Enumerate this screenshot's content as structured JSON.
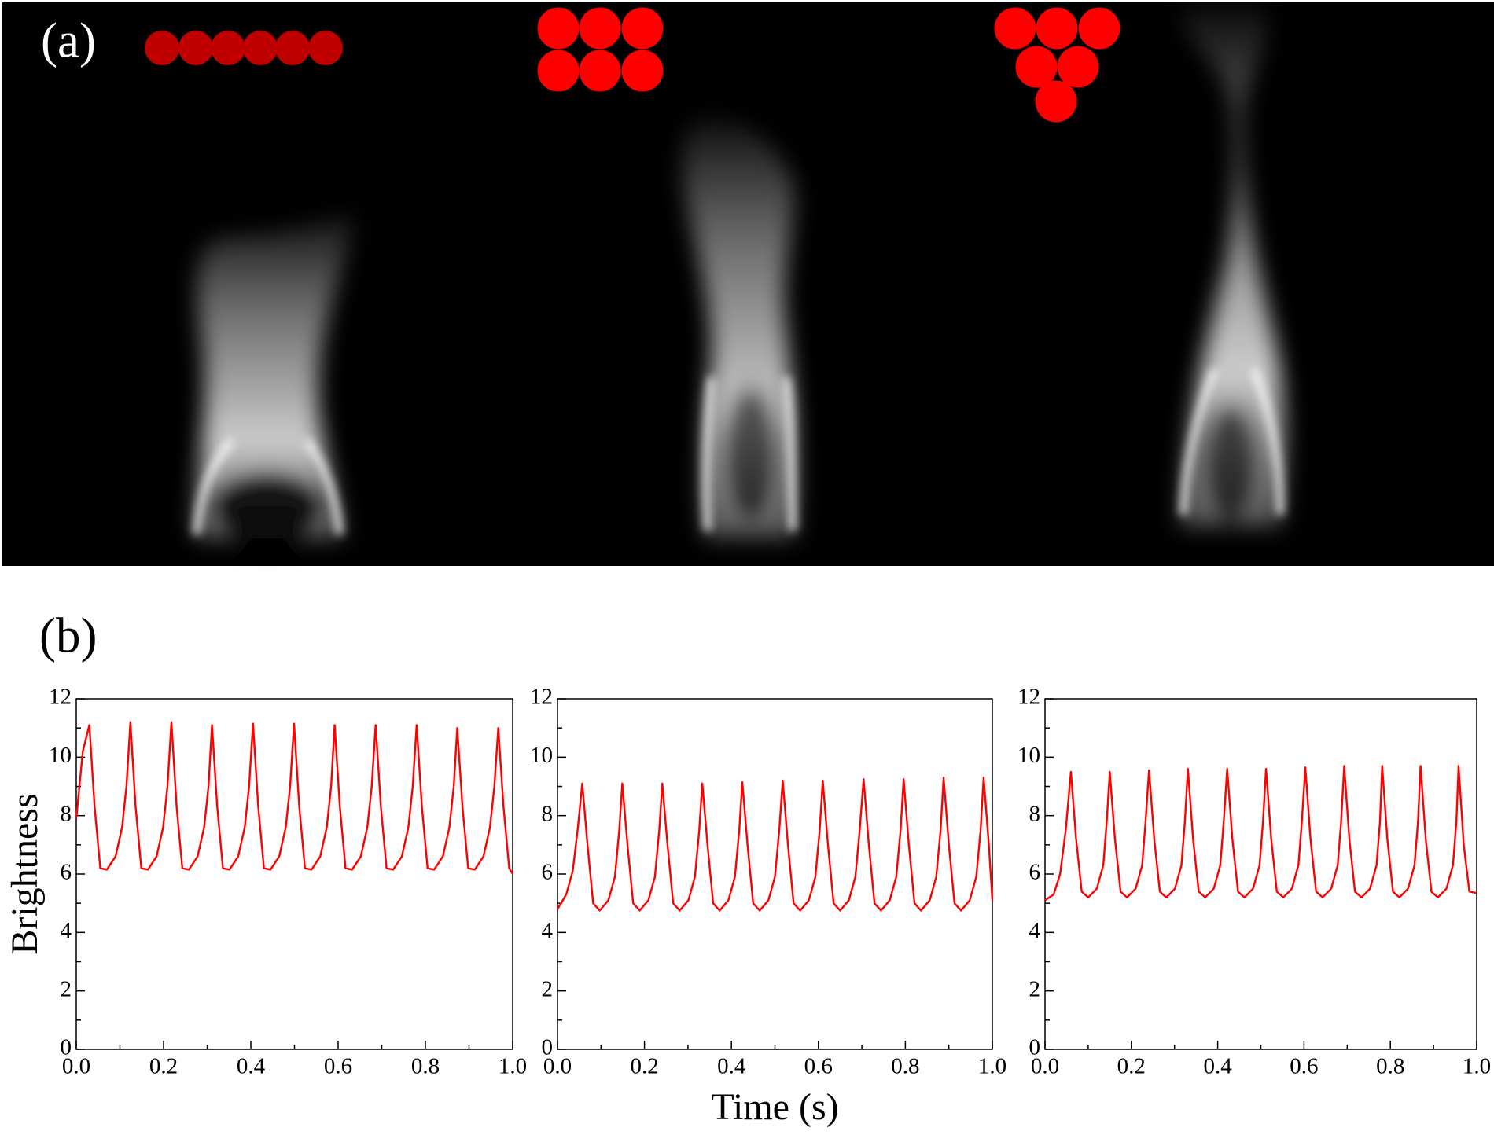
{
  "panel_labels": [
    "(a)",
    "(b)"
  ],
  "chart_data": [
    {
      "type": "line",
      "ylabel": "Brightness",
      "color": "#ff0000",
      "xlim": [
        0,
        1
      ],
      "ylim": [
        0,
        12
      ],
      "xticks": [
        {
          "value": 0,
          "label": "0.0"
        },
        0.2,
        0.4,
        0.6,
        0.8,
        {
          "value": 1,
          "label": "1.0"
        }
      ],
      "yticks": [
        0,
        2,
        4,
        6,
        8,
        10,
        12
      ],
      "x": [
        0,
        0.015,
        0.03,
        0.042,
        0.055,
        0.07,
        0.09,
        0.105,
        0.115,
        0.124,
        0.136,
        0.149,
        0.164,
        0.184,
        0.199,
        0.209,
        0.218,
        0.23,
        0.243,
        0.258,
        0.278,
        0.293,
        0.303,
        0.311,
        0.323,
        0.336,
        0.351,
        0.371,
        0.386,
        0.396,
        0.405,
        0.417,
        0.43,
        0.445,
        0.465,
        0.48,
        0.49,
        0.499,
        0.511,
        0.524,
        0.539,
        0.559,
        0.574,
        0.584,
        0.592,
        0.604,
        0.617,
        0.632,
        0.652,
        0.667,
        0.677,
        0.686,
        0.698,
        0.711,
        0.726,
        0.746,
        0.761,
        0.771,
        0.78,
        0.792,
        0.805,
        0.82,
        0.84,
        0.855,
        0.865,
        0.873,
        0.885,
        0.898,
        0.913,
        0.933,
        0.948,
        0.958,
        0.967,
        0.979,
        0.992,
        1.0
      ],
      "values": [
        7.9,
        10.2,
        11.1,
        8.3,
        6.2,
        6.15,
        6.6,
        7.6,
        9.0,
        11.2,
        8.3,
        6.2,
        6.15,
        6.6,
        7.6,
        9.0,
        11.2,
        8.3,
        6.2,
        6.15,
        6.6,
        7.6,
        9.0,
        11.1,
        8.3,
        6.2,
        6.15,
        6.6,
        7.6,
        9.0,
        11.15,
        8.3,
        6.2,
        6.15,
        6.6,
        7.6,
        9.0,
        11.15,
        8.3,
        6.2,
        6.15,
        6.6,
        7.6,
        9.0,
        11.1,
        8.3,
        6.2,
        6.15,
        6.6,
        7.6,
        9.0,
        11.1,
        8.3,
        6.2,
        6.15,
        6.6,
        7.6,
        9.0,
        11.1,
        8.3,
        6.2,
        6.15,
        6.6,
        7.6,
        9.0,
        11.0,
        8.3,
        6.2,
        6.15,
        6.6,
        7.6,
        9.0,
        11.0,
        8.3,
        6.2,
        6.0
      ]
    },
    {
      "type": "line",
      "xlabel": "Time (s)",
      "color": "#ff0000",
      "xlim": [
        0,
        1
      ],
      "ylim": [
        0,
        12
      ],
      "xticks": [
        {
          "value": 0,
          "label": "0.0"
        },
        0.2,
        0.4,
        0.6,
        0.8,
        {
          "value": 1,
          "label": "1.0"
        }
      ],
      "yticks": [
        0,
        2,
        4,
        6,
        8,
        10,
        12
      ],
      "x": [
        0,
        0.02,
        0.035,
        0.047,
        0.057,
        0.069,
        0.082,
        0.097,
        0.117,
        0.132,
        0.142,
        0.149,
        0.161,
        0.174,
        0.189,
        0.209,
        0.224,
        0.234,
        0.241,
        0.253,
        0.266,
        0.281,
        0.301,
        0.316,
        0.326,
        0.333,
        0.345,
        0.358,
        0.373,
        0.393,
        0.408,
        0.418,
        0.425,
        0.437,
        0.45,
        0.465,
        0.485,
        0.5,
        0.51,
        0.518,
        0.53,
        0.543,
        0.558,
        0.578,
        0.593,
        0.603,
        0.61,
        0.622,
        0.635,
        0.65,
        0.67,
        0.685,
        0.695,
        0.704,
        0.716,
        0.729,
        0.744,
        0.764,
        0.779,
        0.789,
        0.796,
        0.808,
        0.821,
        0.836,
        0.856,
        0.871,
        0.881,
        0.888,
        0.9,
        0.913,
        0.928,
        0.948,
        0.963,
        0.973,
        0.98,
        0.992,
        1.0
      ],
      "values": [
        4.8,
        5.3,
        6.1,
        7.6,
        9.1,
        7.0,
        5.0,
        4.75,
        5.1,
        5.9,
        7.5,
        9.1,
        7.0,
        5.0,
        4.75,
        5.1,
        5.9,
        7.5,
        9.1,
        7.0,
        5.0,
        4.75,
        5.1,
        5.9,
        7.5,
        9.1,
        7.0,
        5.0,
        4.75,
        5.1,
        5.9,
        7.5,
        9.15,
        7.0,
        5.0,
        4.75,
        5.1,
        5.9,
        7.5,
        9.2,
        7.0,
        5.0,
        4.75,
        5.1,
        5.9,
        7.5,
        9.2,
        7.0,
        5.0,
        4.75,
        5.1,
        5.9,
        7.5,
        9.25,
        7.0,
        5.0,
        4.75,
        5.1,
        5.9,
        7.5,
        9.25,
        7.0,
        5.0,
        4.75,
        5.1,
        5.9,
        7.5,
        9.3,
        7.0,
        5.0,
        4.75,
        5.1,
        5.9,
        7.5,
        9.3,
        7.0,
        5.1
      ]
    },
    {
      "type": "line",
      "color": "#ff0000",
      "xlim": [
        0,
        1
      ],
      "ylim": [
        0,
        12
      ],
      "xticks": [
        {
          "value": 0,
          "label": "0.0"
        },
        0.2,
        0.4,
        0.6,
        0.8,
        {
          "value": 1,
          "label": "1.0"
        }
      ],
      "yticks": [
        0,
        2,
        4,
        6,
        8,
        10,
        12
      ],
      "x": [
        0,
        0.02,
        0.035,
        0.048,
        0.06,
        0.072,
        0.085,
        0.1,
        0.12,
        0.135,
        0.143,
        0.15,
        0.162,
        0.175,
        0.19,
        0.21,
        0.225,
        0.233,
        0.241,
        0.253,
        0.266,
        0.281,
        0.301,
        0.316,
        0.324,
        0.331,
        0.343,
        0.356,
        0.371,
        0.391,
        0.406,
        0.414,
        0.422,
        0.434,
        0.447,
        0.462,
        0.482,
        0.497,
        0.505,
        0.512,
        0.524,
        0.537,
        0.552,
        0.572,
        0.587,
        0.595,
        0.603,
        0.615,
        0.628,
        0.643,
        0.663,
        0.678,
        0.686,
        0.693,
        0.705,
        0.718,
        0.733,
        0.753,
        0.768,
        0.776,
        0.781,
        0.793,
        0.806,
        0.821,
        0.841,
        0.856,
        0.864,
        0.87,
        0.882,
        0.895,
        0.91,
        0.93,
        0.945,
        0.953,
        0.958,
        0.97,
        0.983,
        1.0
      ],
      "values": [
        5.1,
        5.3,
        6.0,
        7.5,
        9.5,
        7.2,
        5.4,
        5.2,
        5.5,
        6.3,
        7.8,
        9.5,
        7.2,
        5.4,
        5.2,
        5.5,
        6.3,
        7.8,
        9.55,
        7.2,
        5.4,
        5.2,
        5.5,
        6.3,
        7.8,
        9.6,
        7.2,
        5.4,
        5.2,
        5.5,
        6.3,
        7.8,
        9.6,
        7.2,
        5.4,
        5.2,
        5.5,
        6.3,
        7.8,
        9.6,
        7.2,
        5.4,
        5.2,
        5.5,
        6.3,
        7.8,
        9.65,
        7.2,
        5.4,
        5.2,
        5.5,
        6.3,
        7.8,
        9.7,
        7.2,
        5.4,
        5.2,
        5.5,
        6.3,
        7.8,
        9.7,
        7.2,
        5.4,
        5.2,
        5.5,
        6.3,
        7.8,
        9.7,
        7.2,
        5.4,
        5.2,
        5.5,
        6.3,
        7.8,
        9.7,
        7.0,
        5.4,
        5.35
      ]
    }
  ]
}
